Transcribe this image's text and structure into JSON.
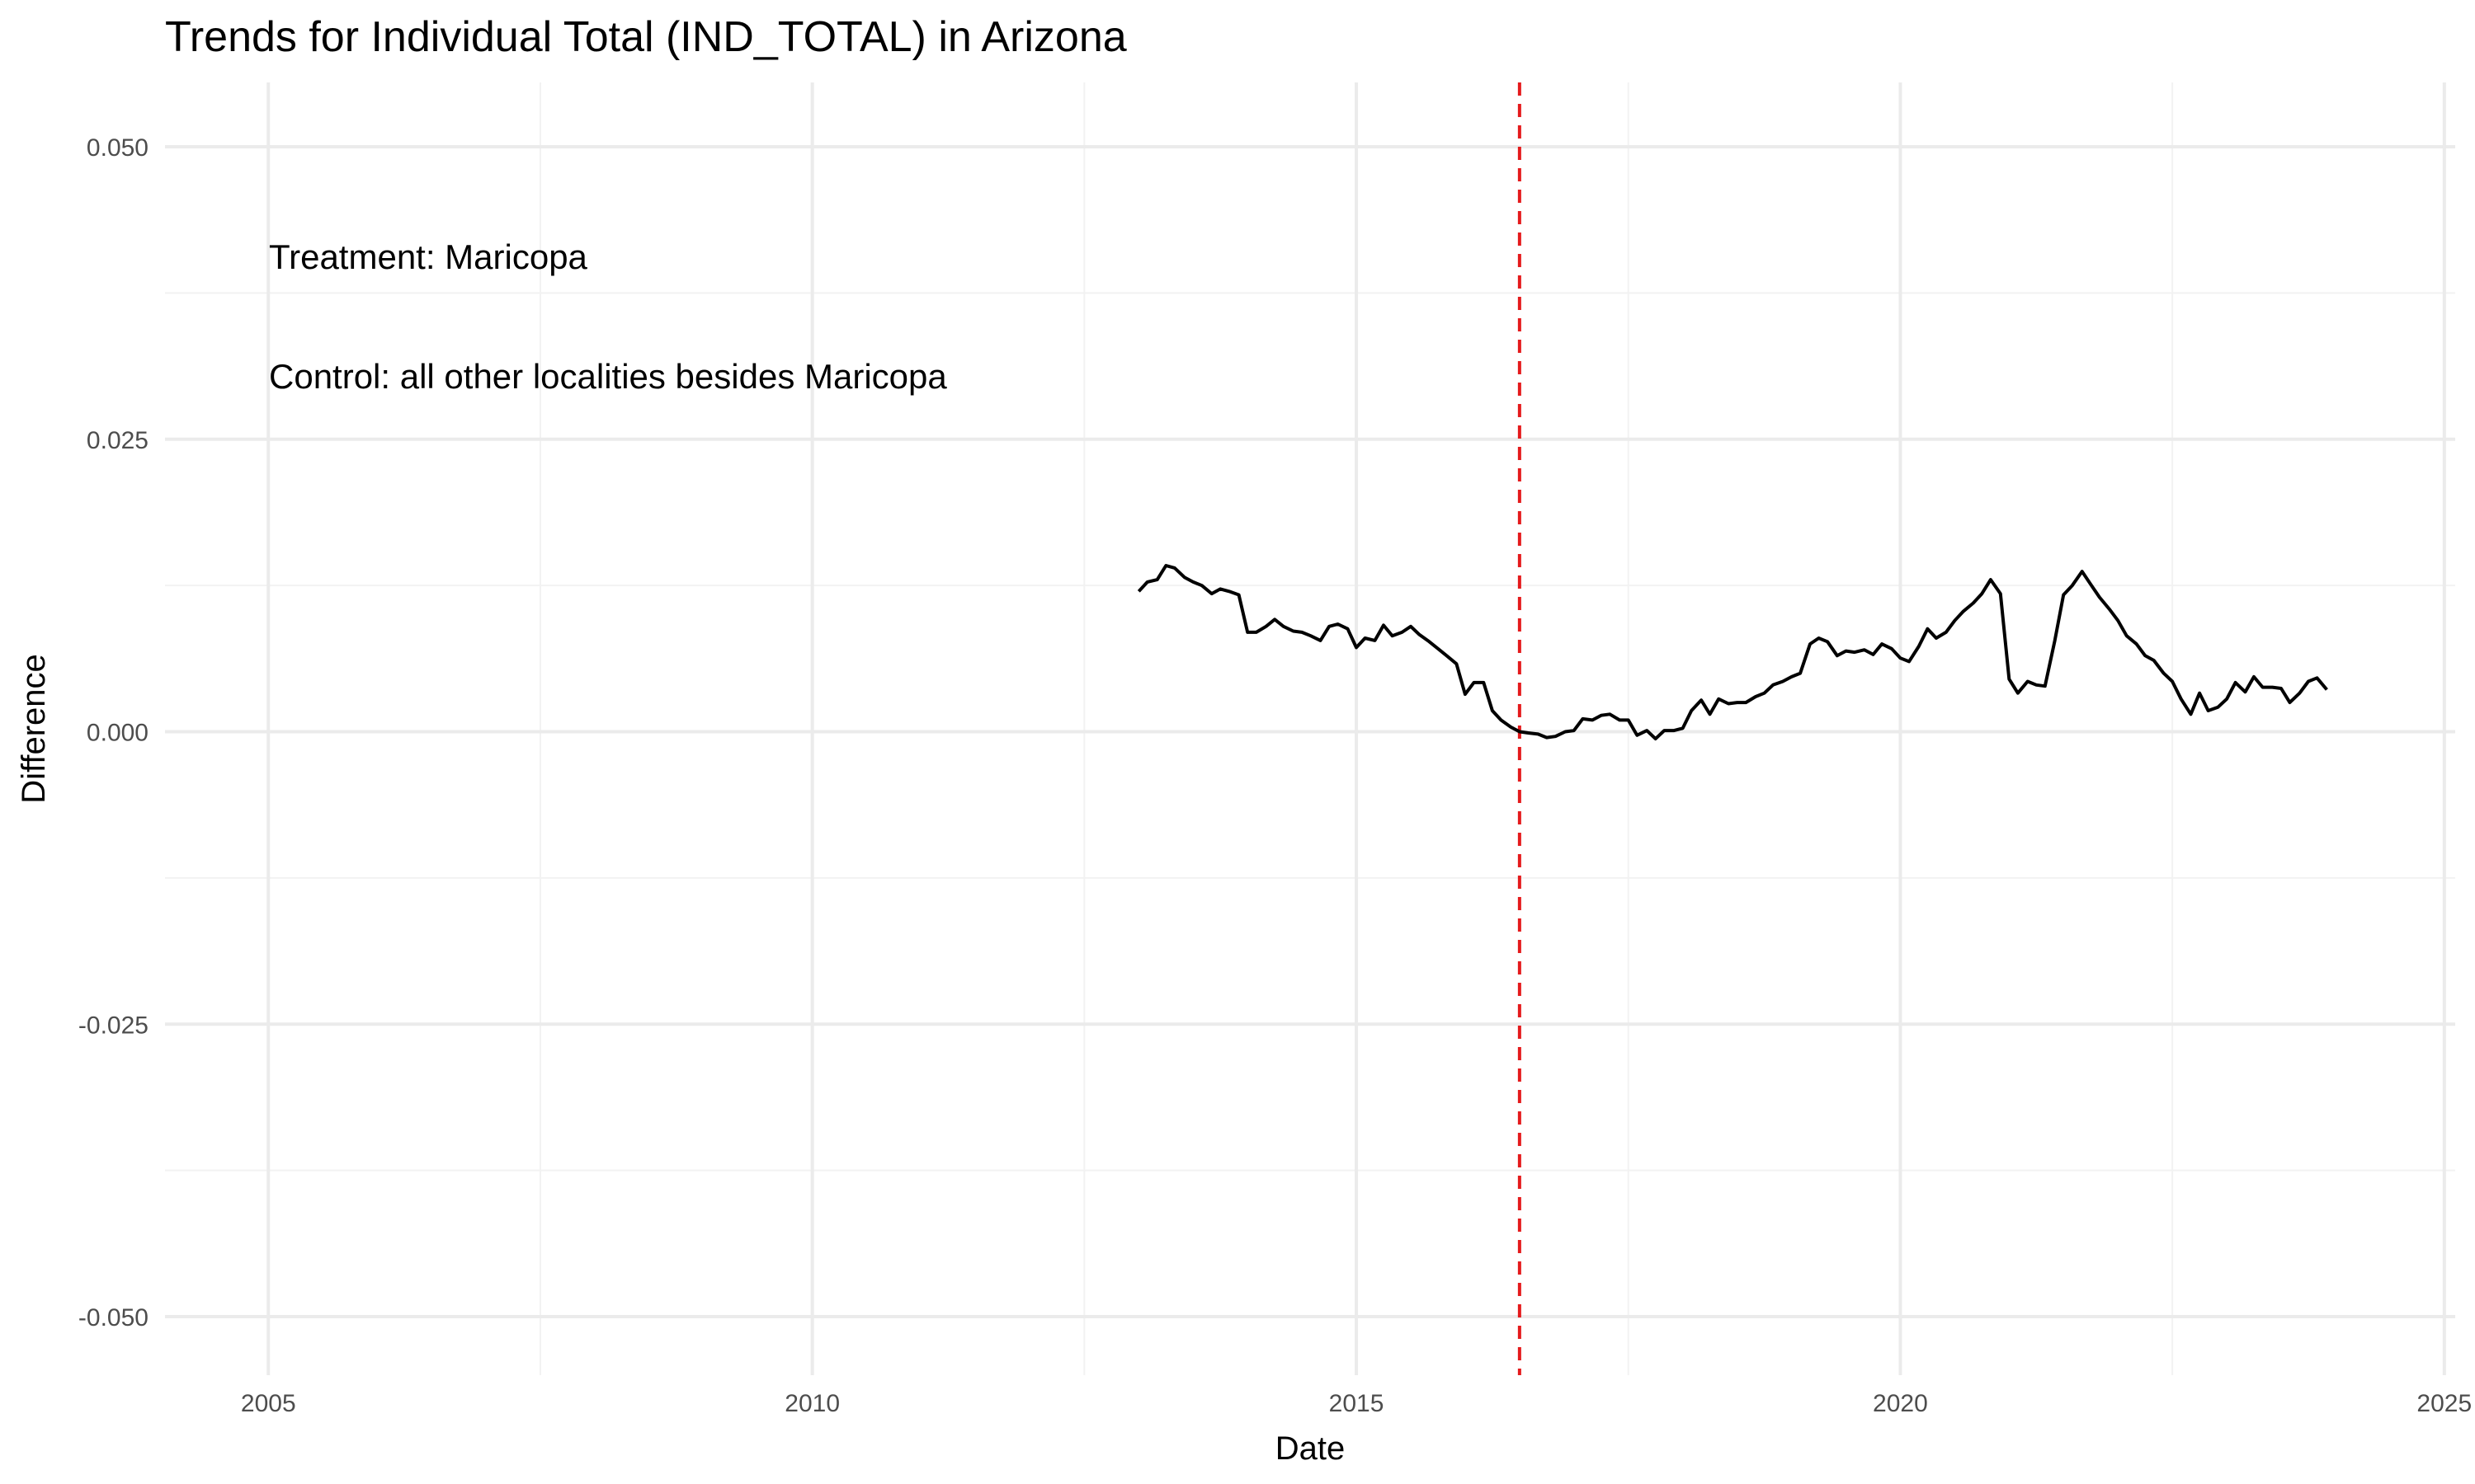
{
  "chart_data": {
    "type": "line",
    "title": "Trends for Individual Total (IND_TOTAL) in Arizona",
    "xlabel": "Date",
    "ylabel": "Difference",
    "xlim": [
      2004.05,
      2025.1
    ],
    "ylim": [
      -0.055,
      0.0555
    ],
    "x_ticks": [
      2005,
      2010,
      2015,
      2020,
      2025
    ],
    "x_tick_labels": [
      "2005",
      "2010",
      "2015",
      "2020",
      "2025"
    ],
    "y_ticks": [
      0.05,
      0.025,
      0.0,
      -0.025,
      -0.05
    ],
    "y_tick_labels": [
      "0.050",
      "0.025",
      "0.000",
      "-0.025",
      "-0.050"
    ],
    "grid": true,
    "annotations": [
      "Treatment: Maricopa",
      "Control: all other localities besides Maricopa"
    ],
    "vline": {
      "x": 2016.5,
      "color": "#e41a1c",
      "style": "dashed"
    },
    "series": [
      {
        "color": "#000000",
        "x": [
          2013.0,
          2013.08,
          2013.17,
          2013.25,
          2013.33,
          2013.42,
          2013.5,
          2013.58,
          2013.67,
          2013.75,
          2013.83,
          2013.92,
          2014.0,
          2014.08,
          2014.17,
          2014.25,
          2014.33,
          2014.42,
          2014.5,
          2014.58,
          2014.67,
          2014.75,
          2014.83,
          2014.92,
          2015.0,
          2015.08,
          2015.17,
          2015.25,
          2015.33,
          2015.42,
          2015.5,
          2015.58,
          2015.67,
          2015.75,
          2015.83,
          2015.92,
          2016.0,
          2016.08,
          2016.17,
          2016.25,
          2016.33,
          2016.42,
          2016.5,
          2016.58,
          2016.67,
          2016.75,
          2016.83,
          2016.92,
          2017.0,
          2017.08,
          2017.17,
          2017.25,
          2017.33,
          2017.42,
          2017.5,
          2017.58,
          2017.67,
          2017.75,
          2017.83,
          2017.92,
          2018.0,
          2018.08,
          2018.17,
          2018.25,
          2018.33,
          2018.42,
          2018.5,
          2018.58,
          2018.67,
          2018.75,
          2018.83,
          2018.92,
          2019.0,
          2019.08,
          2019.17,
          2019.25,
          2019.33,
          2019.42,
          2019.5,
          2019.58,
          2019.67,
          2019.75,
          2019.83,
          2019.92,
          2020.0,
          2020.08,
          2020.17,
          2020.25,
          2020.33,
          2020.42,
          2020.5,
          2020.58,
          2020.67,
          2020.75,
          2020.83,
          2020.92,
          2021.0,
          2021.08,
          2021.17,
          2021.25,
          2021.33,
          2021.42,
          2021.5,
          2021.58,
          2021.67,
          2021.75,
          2021.83,
          2021.92,
          2022.0,
          2022.08,
          2022.17,
          2022.25,
          2022.33,
          2022.42,
          2022.5,
          2022.58,
          2022.67,
          2022.75,
          2022.83,
          2022.92,
          2023.0,
          2023.08,
          2023.17,
          2023.25,
          2023.33,
          2023.42,
          2023.5,
          2023.58,
          2023.67,
          2023.75,
          2023.83,
          2023.92
        ],
        "y": [
          0.012,
          0.0128,
          0.013,
          0.0142,
          0.014,
          0.0132,
          0.0128,
          0.0125,
          0.0118,
          0.0122,
          0.012,
          0.0117,
          0.0085,
          0.0085,
          0.009,
          0.0096,
          0.009,
          0.0086,
          0.0085,
          0.0082,
          0.0078,
          0.009,
          0.0092,
          0.0088,
          0.0072,
          0.008,
          0.0078,
          0.0091,
          0.0082,
          0.0085,
          0.009,
          0.0083,
          0.0077,
          0.0071,
          0.0065,
          0.0058,
          0.0032,
          0.0042,
          0.0042,
          0.0018,
          0.001,
          0.0004,
          0.0,
          -0.0001,
          -0.0002,
          -0.0005,
          -0.0004,
          0.0,
          0.0001,
          0.0011,
          0.001,
          0.0014,
          0.0015,
          0.001,
          0.001,
          -0.0003,
          0.0001,
          -0.0006,
          0.0001,
          0.0001,
          0.0003,
          0.0018,
          0.0027,
          0.0015,
          0.0028,
          0.0024,
          0.0025,
          0.0025,
          0.003,
          0.0033,
          0.004,
          0.0043,
          0.0047,
          0.005,
          0.0075,
          0.008,
          0.0077,
          0.0065,
          0.0069,
          0.0068,
          0.007,
          0.0066,
          0.0075,
          0.0071,
          0.0063,
          0.006,
          0.0073,
          0.0088,
          0.008,
          0.0085,
          0.0095,
          0.0103,
          0.011,
          0.0118,
          0.013,
          0.0118,
          0.0045,
          0.0033,
          0.0043,
          0.004,
          0.0039,
          0.0078,
          0.0117,
          0.0125,
          0.0137,
          0.0126,
          0.0115,
          0.0105,
          0.0095,
          0.0082,
          0.0075,
          0.0065,
          0.0061,
          0.005,
          0.0043,
          0.0028,
          0.0015,
          0.0033,
          0.0018,
          0.0021,
          0.0028,
          0.0042,
          0.0034,
          0.0047,
          0.0038,
          0.0038,
          0.0037,
          0.0025,
          0.0033,
          0.0043,
          0.0046,
          0.0036
        ]
      }
    ]
  }
}
